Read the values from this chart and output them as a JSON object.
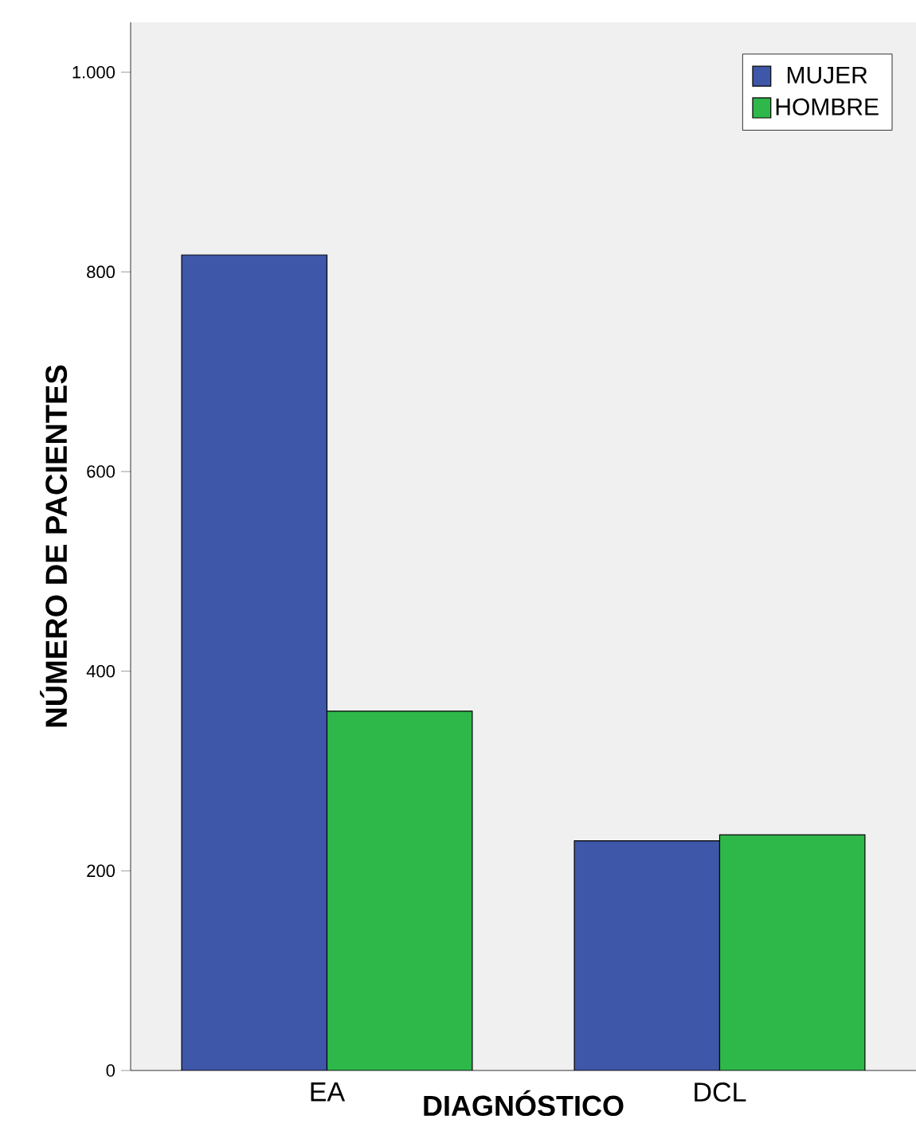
{
  "chart_data": {
    "type": "bar",
    "xlabel": "DIAGNÓSTICO",
    "ylabel": "NÚMERO DE PACIENTES",
    "categories": [
      "EA",
      "DCL"
    ],
    "series": [
      {
        "name": "MUJER",
        "color": "#3f57a8",
        "values": [
          817,
          230
        ]
      },
      {
        "name": "HOMBRE",
        "color": "#2eb84a",
        "values": [
          360,
          236
        ]
      }
    ],
    "ylim": [
      0,
      1050
    ],
    "yticks": [
      0,
      200,
      400,
      600,
      800,
      {
        "value": 1000,
        "label": "1.000"
      }
    ],
    "grid": false,
    "legend": "top right"
  }
}
